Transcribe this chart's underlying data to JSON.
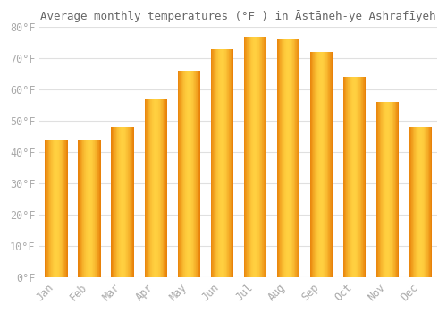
{
  "title": "Average monthly temperatures (°F ) in Āstāneh-ye Ashrafīyeh",
  "months": [
    "Jan",
    "Feb",
    "Mar",
    "Apr",
    "May",
    "Jun",
    "Jul",
    "Aug",
    "Sep",
    "Oct",
    "Nov",
    "Dec"
  ],
  "values": [
    44,
    44,
    48,
    57,
    66,
    73,
    77,
    76,
    72,
    64,
    56,
    48
  ],
  "bar_color_center": "#FFD040",
  "bar_color_edge": "#E8820A",
  "background_color": "#ffffff",
  "grid_color": "#e0e0e0",
  "ylim": [
    0,
    80
  ],
  "yticks": [
    0,
    10,
    20,
    30,
    40,
    50,
    60,
    70,
    80
  ],
  "title_fontsize": 9,
  "tick_fontsize": 8.5,
  "tick_color": "#aaaaaa",
  "bar_width": 0.68
}
